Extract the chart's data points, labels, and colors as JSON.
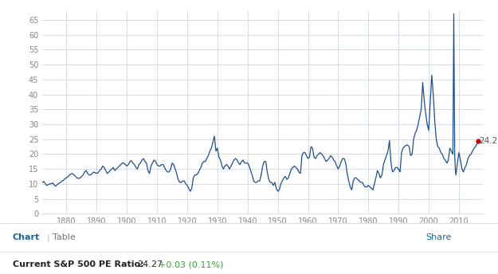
{
  "bg_color": "#ffffff",
  "plot_bg_color": "#ffffff",
  "line_color": "#1f4e8c",
  "grid_color": "#d5dce8",
  "annotation_color": "#cc0000",
  "annotation_text": "24.27",
  "xlim": [
    1872,
    2018
  ],
  "ylim": [
    0,
    68
  ],
  "yticks": [
    0,
    5,
    10,
    15,
    20,
    25,
    30,
    35,
    40,
    45,
    50,
    55,
    60,
    65
  ],
  "xticks": [
    1880,
    1890,
    1900,
    1910,
    1920,
    1930,
    1940,
    1950,
    1960,
    1970,
    1980,
    1990,
    2000,
    2010
  ],
  "current_value": 24.27,
  "end_year": 2016.3,
  "chart_blue": "#1a6496",
  "fb_blue": "#3b5998",
  "green_color": "#3a9e3a",
  "separator_color": "#dddddd",
  "tick_color": "#888888"
}
